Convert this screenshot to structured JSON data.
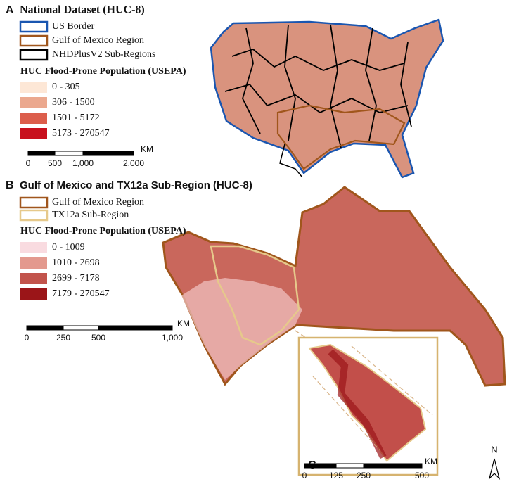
{
  "panels": [
    {
      "letter": "A",
      "title": "National Dataset (HUC-8)",
      "boundaries": [
        {
          "label": "US Border",
          "color": "#1a56b0"
        },
        {
          "label": "Gulf of Mexico Region",
          "color": "#a0561c"
        },
        {
          "label": "NHDPlusV2 Sub-Regions",
          "color": "#000000"
        }
      ],
      "population_title": "HUC Flood-Prone Population (USEPA)",
      "classes": [
        {
          "label": "0 - 305",
          "color": "#fde7d6"
        },
        {
          "label": "306 - 1500",
          "color": "#eba88e"
        },
        {
          "label": "1501 - 5172",
          "color": "#dc5e4c"
        },
        {
          "label": "5173 - 270547",
          "color": "#c8101d"
        }
      ],
      "scale": {
        "unit": "KM",
        "ticks": [
          "0",
          "500",
          "1,000",
          "2,000"
        ]
      }
    },
    {
      "letter": "B",
      "title": "Gulf of Mexico and TX12a Sub-Region (HUC-8)",
      "boundaries": [
        {
          "label": "Gulf of Mexico Region",
          "color": "#a0561c"
        },
        {
          "label": "TX12a Sub-Region",
          "color": "#e6c98b"
        }
      ],
      "population_title": "HUC Flood-Prone Population (USEPA)",
      "classes": [
        {
          "label": "0 - 1009",
          "color": "#f9dbe0"
        },
        {
          "label": "1010 - 2698",
          "color": "#e3998e"
        },
        {
          "label": "2699 - 7178",
          "color": "#c2544c"
        },
        {
          "label": "7179 - 270547",
          "color": "#9b1518"
        }
      ],
      "scale": {
        "unit": "KM",
        "ticks": [
          "0",
          "250",
          "500",
          "1,000"
        ]
      }
    },
    {
      "letter": "C",
      "scale": {
        "unit": "KM",
        "ticks": [
          "0",
          "125",
          "250",
          "500"
        ]
      }
    }
  ],
  "north_arrow": "N"
}
